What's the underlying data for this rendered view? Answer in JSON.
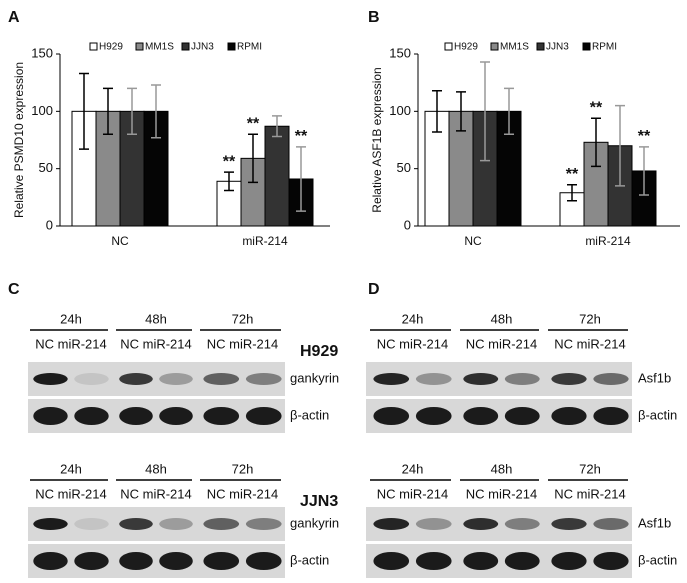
{
  "chart_data": [
    {
      "type": "bar",
      "label": "A",
      "ylabel": "Relative PSMD10 expression",
      "categories": [
        "NC",
        "miR-214"
      ],
      "ylim": [
        0,
        150
      ],
      "yticks": [
        0,
        50,
        100,
        150
      ],
      "series": [
        {
          "name": "H929",
          "color": "#ffffff",
          "values": [
            100,
            39
          ],
          "errors": [
            33,
            8
          ],
          "labels": [
            null,
            "**"
          ]
        },
        {
          "name": "MM1S",
          "color": "#8a8a8a",
          "values": [
            100,
            59
          ],
          "errors": [
            20,
            21
          ],
          "labels": [
            null,
            "**"
          ]
        },
        {
          "name": "JJN3",
          "color": "#333333",
          "values": [
            100,
            87
          ],
          "errors": [
            20,
            9
          ],
          "labels": [
            null,
            null
          ]
        },
        {
          "name": "RPMI",
          "color": "#050505",
          "values": [
            100,
            41
          ],
          "errors": [
            23,
            28
          ],
          "labels": [
            null,
            "**"
          ]
        }
      ]
    },
    {
      "type": "bar",
      "label": "B",
      "ylabel": "Relative ASF1B expression",
      "categories": [
        "NC",
        "miR-214"
      ],
      "ylim": [
        0,
        150
      ],
      "yticks": [
        0,
        50,
        100,
        150
      ],
      "series": [
        {
          "name": "H929",
          "color": "#ffffff",
          "values": [
            100,
            29
          ],
          "errors": [
            18,
            7
          ],
          "labels": [
            null,
            "**"
          ]
        },
        {
          "name": "MM1S",
          "color": "#8a8a8a",
          "values": [
            100,
            73
          ],
          "errors": [
            17,
            21
          ],
          "labels": [
            null,
            "**"
          ]
        },
        {
          "name": "JJN3",
          "color": "#333333",
          "values": [
            100,
            70
          ],
          "errors": [
            43,
            35
          ],
          "labels": [
            null,
            null
          ]
        },
        {
          "name": "RPMI",
          "color": "#050505",
          "values": [
            100,
            48
          ],
          "errors": [
            20,
            21
          ],
          "labels": [
            null,
            "**"
          ]
        }
      ]
    }
  ],
  "panels": [
    {
      "label": "C",
      "blots": [
        {
          "cell_line": "H929",
          "times": [
            "24h",
            "48h",
            "72h"
          ],
          "lanes": [
            "NC miR-214",
            "NC miR-214",
            "NC miR-214"
          ],
          "rows": [
            "gankyrin",
            "β-actin"
          ]
        },
        {
          "cell_line": "JJN3",
          "times": [
            "24h",
            "48h",
            "72h"
          ],
          "lanes": [
            "NC miR-214",
            "NC miR-214",
            "NC miR-214"
          ],
          "rows": [
            "gankyrin",
            "β-actin"
          ]
        }
      ]
    },
    {
      "label": "D",
      "blots": [
        {
          "times": [
            "24h",
            "48h",
            "72h"
          ],
          "lanes": [
            "NC miR-214",
            "NC miR-214",
            "NC miR-214"
          ],
          "rows": [
            "Asf1b",
            "β-actin"
          ]
        },
        {
          "times": [
            "24h",
            "48h",
            "72h"
          ],
          "lanes": [
            "NC miR-214",
            "NC miR-214",
            "NC miR-214"
          ],
          "rows": [
            "Asf1b",
            "β-actin"
          ]
        }
      ]
    }
  ]
}
